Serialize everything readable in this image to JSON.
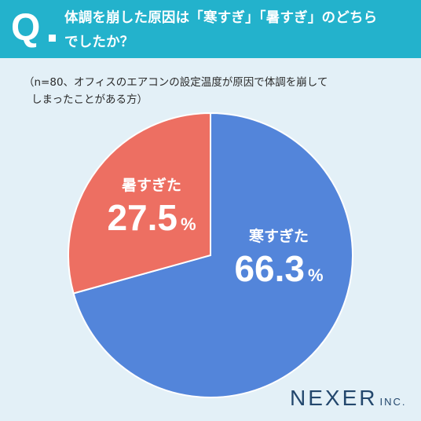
{
  "header": {
    "q_mark": "Q",
    "question_line1": "体調を崩した原因は「寒すぎ」「暑すぎ」のどちら",
    "question_line2": "でしたか？"
  },
  "note": {
    "line1": "（n=80、オフィスのエアコンの設定温度が原因で体調を崩して",
    "line2": "しまったことがある方）"
  },
  "colors": {
    "header_bg": "#23b2cc",
    "background": "#e3f0f7",
    "cold": "#5385da",
    "hot": "#ed6f62",
    "brand": "#23476d"
  },
  "chart_data": {
    "type": "pie",
    "unit": "%",
    "slices": [
      {
        "label": "寒すぎた",
        "value": 66.3,
        "display": "66.3",
        "color": "#5385da"
      },
      {
        "label": "暑すぎた",
        "value": 27.5,
        "display": "27.5",
        "color": "#ed6f62"
      }
    ]
  },
  "brand": {
    "name": "NEXER",
    "suffix": "INC."
  }
}
